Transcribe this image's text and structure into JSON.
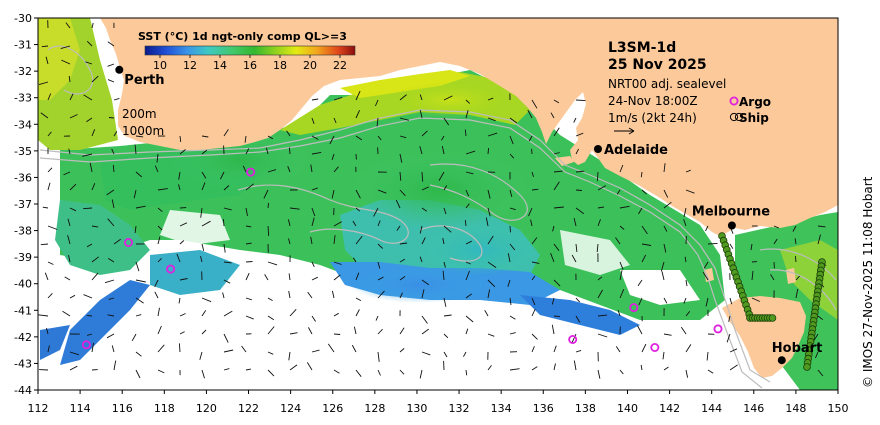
{
  "map": {
    "title_line1": "L3SM-1d",
    "title_line2": "25 Nov 2025",
    "sealevel_label": "NRT00 adj. sealevel",
    "sealevel_time": "24-Nov 18:00Z",
    "vector_scale_label": "1m/s (2kt 24h)",
    "argo_label": "Argo",
    "ship_label": "Ship",
    "credit": "© IMOS 27-Nov-2025 11:08 Hobart",
    "depth_contour_1": "200m",
    "depth_contour_2": "1000m"
  },
  "colorbar": {
    "title": "SST (°C) 1d ngt-only comp QL>=3",
    "ticks": [
      "10",
      "12",
      "14",
      "16",
      "18",
      "20",
      "22"
    ],
    "range": [
      9,
      23
    ],
    "colors": [
      "#0a1a8c",
      "#1f4fd6",
      "#3a93e8",
      "#3ec9c4",
      "#42c86a",
      "#33b82f",
      "#8fd11f",
      "#e4ea12",
      "#f2a51c",
      "#e0461c",
      "#8c0e0e"
    ]
  },
  "axes": {
    "x_ticks": [
      "112",
      "114",
      "116",
      "118",
      "120",
      "122",
      "124",
      "126",
      "128",
      "130",
      "132",
      "134",
      "136",
      "138",
      "140",
      "142",
      "144",
      "146",
      "148",
      "150"
    ],
    "y_ticks": [
      "-30",
      "-31",
      "-32",
      "-33",
      "-34",
      "-35",
      "-36",
      "-37",
      "-38",
      "-39",
      "-40",
      "-41",
      "-42",
      "-43",
      "-44"
    ],
    "lon_range": [
      112,
      150
    ],
    "lat_range": [
      -44,
      -30
    ]
  },
  "cities": [
    {
      "name": "Perth",
      "lon": 115.86,
      "lat": -31.95
    },
    {
      "name": "Adelaide",
      "lon": 138.6,
      "lat": -34.93
    },
    {
      "name": "Melbourne",
      "lon": 144.96,
      "lat": -37.81
    },
    {
      "name": "Hobart",
      "lon": 147.33,
      "lat": -42.88
    }
  ],
  "argo_floats": [
    {
      "lon": 122.1,
      "lat": -35.8
    },
    {
      "lon": 116.3,
      "lat": -38.45
    },
    {
      "lon": 118.3,
      "lat": -39.45
    },
    {
      "lon": 114.3,
      "lat": -42.3
    },
    {
      "lon": 137.4,
      "lat": -42.1
    },
    {
      "lon": 140.3,
      "lat": -40.9
    },
    {
      "lon": 141.3,
      "lat": -42.4
    },
    {
      "lon": 144.3,
      "lat": -41.7
    }
  ],
  "colors": {
    "land": "#fcc99a",
    "ocean_nodata": "#ffffff",
    "argo": "#e020e0",
    "ship": "#2a6e10",
    "frame": "#000000"
  }
}
